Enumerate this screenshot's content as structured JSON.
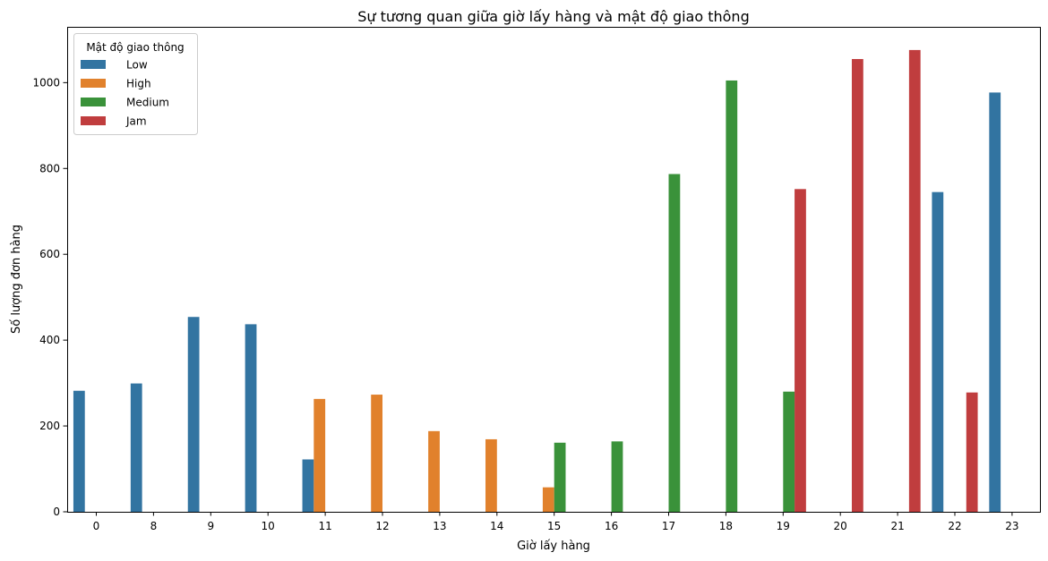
{
  "chart_data": {
    "type": "bar",
    "title": "Sự tương quan giữa giờ lấy hàng và mật độ giao thông",
    "xlabel": "Giờ lấy hàng",
    "ylabel": "Số lượng đơn hàng",
    "categories": [
      "0",
      "8",
      "9",
      "10",
      "11",
      "12",
      "13",
      "14",
      "15",
      "16",
      "17",
      "18",
      "19",
      "20",
      "21",
      "22",
      "23"
    ],
    "yticks": [
      0,
      200,
      400,
      600,
      800,
      1000
    ],
    "ylim": [
      0,
      1130
    ],
    "legend": {
      "title": "Mật độ giao thông",
      "placement": "top-left"
    },
    "series": [
      {
        "name": "Low",
        "color": "#3274a1",
        "values": [
          282,
          299,
          454,
          437,
          122,
          null,
          null,
          null,
          null,
          null,
          null,
          null,
          null,
          null,
          null,
          745,
          977
        ]
      },
      {
        "name": "High",
        "color": "#e1812c",
        "values": [
          null,
          null,
          null,
          null,
          263,
          273,
          188,
          169,
          57,
          null,
          null,
          null,
          null,
          null,
          null,
          null,
          null
        ]
      },
      {
        "name": "Medium",
        "color": "#3a923a",
        "values": [
          null,
          null,
          null,
          null,
          null,
          null,
          null,
          null,
          161,
          164,
          787,
          1005,
          280,
          null,
          null,
          null,
          null
        ]
      },
      {
        "name": "Jam",
        "color": "#c03d3e",
        "values": [
          null,
          null,
          null,
          null,
          null,
          null,
          null,
          null,
          null,
          null,
          null,
          null,
          752,
          1055,
          1076,
          278,
          null
        ]
      }
    ]
  }
}
